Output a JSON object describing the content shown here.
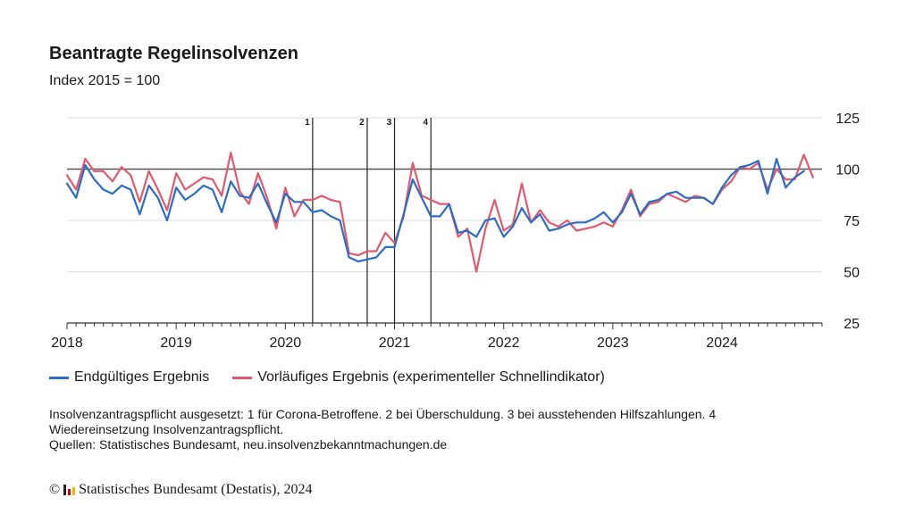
{
  "header": {
    "title": "Beantragte Regelinsolvenzen",
    "subtitle": "Index 2015 = 100"
  },
  "legend": {
    "final_label": "Endgültiges Ergebnis",
    "preliminary_label": "Vorläufiges Ergebnis (experimenteller Schnellindikator)"
  },
  "notes": {
    "line1": "Insolvenzantragspflicht ausgesetzt: 1 für Corona-Betroffene. 2 bei Überschuldung. 3 bei ausstehenden Hilfszahlungen. 4 Wiedereinsetzung Insolvenzantragspflicht.",
    "line2": "Quellen: Statistisches Bundesamt, neu.insolvenzbekanntmachungen.de"
  },
  "footer": {
    "copyright_symbol": "©",
    "copyright_text": "Statistisches Bundesamt (Destatis), 2024"
  },
  "colors": {
    "final": "#2b6cc4",
    "preliminary": "#e05a6e",
    "reference_line": "#555555",
    "grid": "#dddddd",
    "marker": "#222222"
  },
  "chart_data": {
    "type": "line",
    "title": "Beantragte Regelinsolvenzen",
    "subtitle": "Index 2015 = 100",
    "x_start": "2018-01",
    "x_end": "2024-12",
    "x_tick_labels": [
      "2018",
      "2019",
      "2020",
      "2021",
      "2022",
      "2023",
      "2024"
    ],
    "y_ticks": [
      25,
      50,
      75,
      100,
      125
    ],
    "ylim": [
      25,
      125
    ],
    "y_axis_side": "right",
    "grid": true,
    "reference_value": 100,
    "legend_position": "bottom",
    "markers": [
      {
        "label": "1",
        "date": "2020-04"
      },
      {
        "label": "2",
        "date": "2020-10"
      },
      {
        "label": "3",
        "date": "2021-01"
      },
      {
        "label": "4",
        "date": "2021-05"
      }
    ],
    "series": [
      {
        "name": "Endgültiges Ergebnis",
        "color": "#2b6cc4",
        "values": [
          93,
          86,
          102,
          95,
          90,
          88,
          92,
          90,
          78,
          92,
          86,
          75,
          91,
          85,
          88,
          92,
          90,
          79,
          94,
          87,
          86,
          93,
          83,
          74,
          88,
          84,
          84,
          79,
          80,
          77,
          75,
          57,
          55,
          56,
          57,
          62,
          62,
          78,
          95,
          86,
          77,
          77,
          83,
          69,
          70,
          67,
          75,
          76,
          67,
          72,
          81,
          74,
          78,
          70,
          71,
          73,
          74,
          74,
          76,
          79,
          74,
          79,
          88,
          78,
          84,
          85,
          88,
          89,
          86,
          86,
          86,
          83,
          91,
          97,
          101,
          102,
          104,
          88,
          105,
          91,
          96,
          99
        ]
      },
      {
        "name": "Vorläufiges Ergebnis (experimenteller Schnellindikator)",
        "color": "#e05a6e",
        "values": [
          97,
          90,
          105,
          99,
          99,
          94,
          101,
          97,
          84,
          99,
          90,
          80,
          98,
          90,
          93,
          96,
          95,
          87,
          108,
          89,
          83,
          98,
          86,
          71,
          91,
          77,
          85,
          85,
          87,
          85,
          84,
          59,
          58,
          60,
          60,
          69,
          64,
          77,
          103,
          87,
          85,
          83,
          83,
          67,
          71,
          50,
          71,
          85,
          70,
          73,
          93,
          74,
          80,
          74,
          72,
          75,
          70,
          71,
          72,
          74,
          72,
          80,
          90,
          77,
          83,
          84,
          88,
          86,
          84,
          87,
          86,
          83,
          90,
          94,
          101,
          100,
          103,
          90,
          100,
          95,
          95,
          107,
          96
        ]
      }
    ]
  }
}
